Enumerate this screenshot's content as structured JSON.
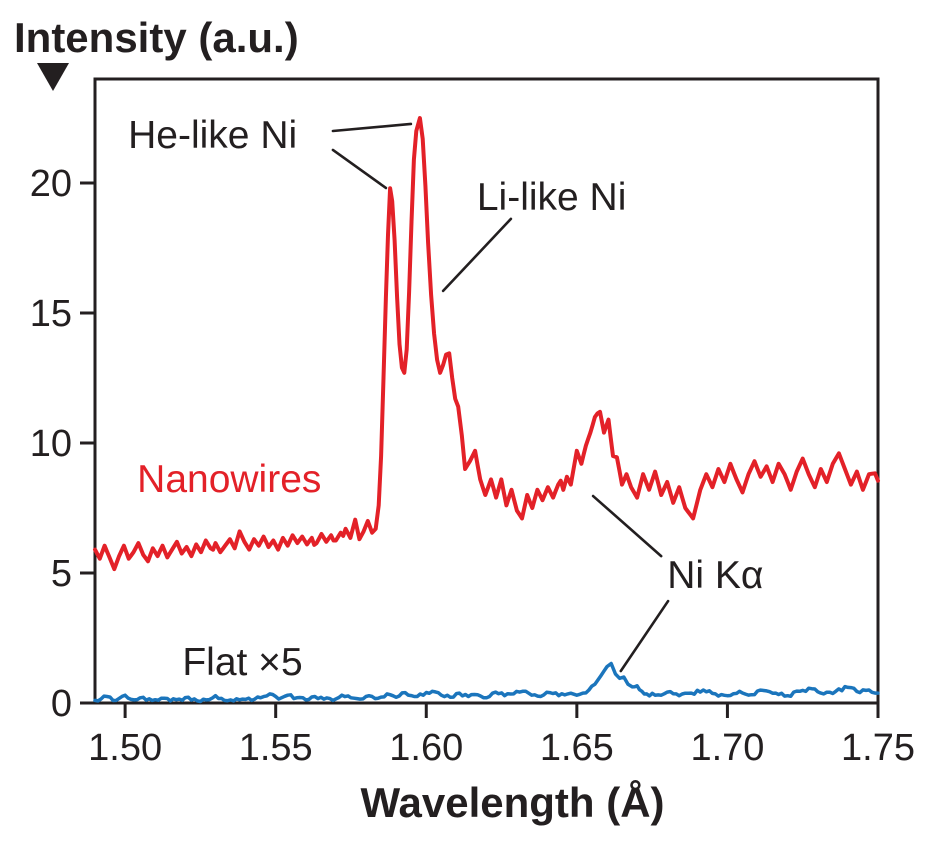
{
  "page": {
    "background": "#ffffff"
  },
  "chart_data": {
    "type": "line",
    "title": "",
    "y_axis_label": "Intensity (a.u.)",
    "x_axis_label": "Wavelength (Å)",
    "xlim": [
      1.49,
      1.75
    ],
    "ylim": [
      0,
      24
    ],
    "x_ticks": [
      1.5,
      1.55,
      1.6,
      1.65,
      1.7,
      1.75
    ],
    "x_tick_labels": [
      "1.50",
      "1.55",
      "1.60",
      "1.65",
      "1.70",
      "1.75"
    ],
    "y_ticks": [
      0,
      5,
      10,
      15,
      20
    ],
    "y_tick_labels": [
      "0",
      "5",
      "10",
      "15",
      "20"
    ],
    "grid": false,
    "legend_position": "inline-annotations",
    "axis_color": "#231f20",
    "background_color": "#ffffff",
    "y_axis_arrow": "down-triangle",
    "features": [
      {
        "label": "He-like Ni",
        "series": "Nanowires",
        "peaks": [
          {
            "x": 1.588,
            "y": 19.8
          },
          {
            "x": 1.598,
            "y": 22.5
          }
        ]
      },
      {
        "label": "Li-like Ni",
        "series": "Nanowires",
        "peaks": [
          {
            "x": 1.607,
            "y": 13.4
          }
        ]
      },
      {
        "label": "Ni Kα",
        "series": "both",
        "peaks": [
          {
            "x": 1.657,
            "y": 11.2,
            "series": "Nanowires"
          },
          {
            "x": 1.661,
            "y": 1.5,
            "series": "Flat ×5"
          }
        ]
      }
    ],
    "series": [
      {
        "name": "Nanowires",
        "color": "#e32128",
        "stroke_width": 4,
        "noise": 0.26,
        "points": [
          [
            1.49,
            5.9
          ],
          [
            1.4916,
            5.55
          ],
          [
            1.4932,
            6.05
          ],
          [
            1.4948,
            5.6
          ],
          [
            1.4964,
            5.15
          ],
          [
            1.498,
            5.65
          ],
          [
            1.4996,
            6.05
          ],
          [
            1.5012,
            5.55
          ],
          [
            1.5028,
            5.8
          ],
          [
            1.5044,
            6.15
          ],
          [
            1.506,
            5.7
          ],
          [
            1.5076,
            5.45
          ],
          [
            1.5092,
            5.95
          ],
          [
            1.5108,
            5.65
          ],
          [
            1.5124,
            6.05
          ],
          [
            1.514,
            5.6
          ],
          [
            1.5156,
            5.9
          ],
          [
            1.5172,
            6.2
          ],
          [
            1.5188,
            5.75
          ],
          [
            1.5204,
            6.0
          ],
          [
            1.522,
            5.65
          ],
          [
            1.5236,
            6.1
          ],
          [
            1.5252,
            5.8
          ],
          [
            1.5268,
            6.25
          ],
          [
            1.5284,
            5.95
          ],
          [
            1.53,
            6.15
          ],
          [
            1.5316,
            5.8
          ],
          [
            1.5332,
            6.05
          ],
          [
            1.5348,
            6.3
          ],
          [
            1.5364,
            5.95
          ],
          [
            1.538,
            6.6
          ],
          [
            1.5396,
            6.2
          ],
          [
            1.5412,
            5.9
          ],
          [
            1.5428,
            6.3
          ],
          [
            1.5444,
            6.05
          ],
          [
            1.546,
            6.4
          ],
          [
            1.5476,
            6.0
          ],
          [
            1.5492,
            6.25
          ],
          [
            1.5508,
            5.9
          ],
          [
            1.5524,
            6.35
          ],
          [
            1.554,
            6.05
          ],
          [
            1.5556,
            6.45
          ],
          [
            1.5572,
            6.15
          ],
          [
            1.5588,
            6.4
          ],
          [
            1.5604,
            6.1
          ],
          [
            1.562,
            6.35
          ],
          [
            1.5636,
            6.15
          ],
          [
            1.5652,
            6.5
          ],
          [
            1.5668,
            6.2
          ],
          [
            1.5684,
            6.45
          ],
          [
            1.57,
            6.25
          ],
          [
            1.5716,
            6.55
          ],
          [
            1.5732,
            6.7
          ],
          [
            1.5748,
            6.35
          ],
          [
            1.5764,
            7.05
          ],
          [
            1.5778,
            6.3
          ],
          [
            1.5792,
            6.6
          ],
          [
            1.5806,
            7.0
          ],
          [
            1.582,
            6.55
          ],
          [
            1.5832,
            6.7
          ],
          [
            1.5842,
            7.6
          ],
          [
            1.585,
            9.5
          ],
          [
            1.5858,
            12.5
          ],
          [
            1.5866,
            15.6
          ],
          [
            1.5873,
            18.0
          ],
          [
            1.588,
            19.8
          ],
          [
            1.5887,
            19.3
          ],
          [
            1.5895,
            17.8
          ],
          [
            1.5903,
            15.6
          ],
          [
            1.5911,
            13.8
          ],
          [
            1.5919,
            12.9
          ],
          [
            1.5927,
            12.7
          ],
          [
            1.5935,
            13.6
          ],
          [
            1.5943,
            15.8
          ],
          [
            1.5951,
            18.5
          ],
          [
            1.5959,
            20.9
          ],
          [
            1.5967,
            22.0
          ],
          [
            1.5979,
            22.5
          ],
          [
            1.5988,
            21.7
          ],
          [
            1.5997,
            19.9
          ],
          [
            1.6006,
            17.7
          ],
          [
            1.6016,
            15.7
          ],
          [
            1.6026,
            14.2
          ],
          [
            1.6036,
            13.2
          ],
          [
            1.6046,
            12.7
          ],
          [
            1.6056,
            13.0
          ],
          [
            1.6066,
            13.4
          ],
          [
            1.6076,
            13.45
          ],
          [
            1.6086,
            12.5
          ],
          [
            1.6096,
            11.7
          ],
          [
            1.6106,
            11.4
          ],
          [
            1.6118,
            10.3
          ],
          [
            1.6129,
            9.0
          ],
          [
            1.6145,
            9.3
          ],
          [
            1.6162,
            9.7
          ],
          [
            1.6179,
            8.6
          ],
          [
            1.6196,
            8.0
          ],
          [
            1.6215,
            8.6
          ],
          [
            1.6232,
            7.9
          ],
          [
            1.6249,
            8.6
          ],
          [
            1.6266,
            7.6
          ],
          [
            1.6283,
            8.2
          ],
          [
            1.6301,
            7.4
          ],
          [
            1.6318,
            7.1
          ],
          [
            1.6335,
            8.0
          ],
          [
            1.6352,
            7.5
          ],
          [
            1.6369,
            8.2
          ],
          [
            1.6386,
            7.8
          ],
          [
            1.6404,
            8.3
          ],
          [
            1.6421,
            7.9
          ],
          [
            1.6438,
            8.4
          ],
          [
            1.6455,
            8.2
          ],
          [
            1.6467,
            8.7
          ],
          [
            1.648,
            8.4
          ],
          [
            1.65,
            9.7
          ],
          [
            1.6515,
            9.2
          ],
          [
            1.653,
            9.9
          ],
          [
            1.6545,
            10.4
          ],
          [
            1.656,
            11.0
          ],
          [
            1.6577,
            11.2
          ],
          [
            1.659,
            10.4
          ],
          [
            1.6605,
            10.9
          ],
          [
            1.662,
            9.5
          ],
          [
            1.6633,
            9.45
          ],
          [
            1.665,
            8.4
          ],
          [
            1.6665,
            8.8
          ],
          [
            1.668,
            8.3
          ],
          [
            1.67,
            7.9
          ],
          [
            1.672,
            8.8
          ],
          [
            1.674,
            8.2
          ],
          [
            1.676,
            8.9
          ],
          [
            1.678,
            8.0
          ],
          [
            1.68,
            8.5
          ],
          [
            1.682,
            7.7
          ],
          [
            1.684,
            8.3
          ],
          [
            1.686,
            7.5
          ],
          [
            1.6886,
            7.1
          ],
          [
            1.691,
            8.2
          ],
          [
            1.693,
            8.8
          ],
          [
            1.695,
            8.3
          ],
          [
            1.697,
            9.0
          ],
          [
            1.699,
            8.5
          ],
          [
            1.701,
            9.2
          ],
          [
            1.703,
            8.6
          ],
          [
            1.705,
            8.1
          ],
          [
            1.707,
            8.8
          ],
          [
            1.709,
            9.3
          ],
          [
            1.711,
            8.7
          ],
          [
            1.713,
            9.1
          ],
          [
            1.715,
            8.5
          ],
          [
            1.717,
            9.2
          ],
          [
            1.719,
            8.8
          ],
          [
            1.721,
            8.2
          ],
          [
            1.723,
            8.9
          ],
          [
            1.725,
            9.4
          ],
          [
            1.727,
            8.8
          ],
          [
            1.729,
            8.3
          ],
          [
            1.731,
            9.0
          ],
          [
            1.733,
            8.5
          ],
          [
            1.735,
            9.2
          ],
          [
            1.737,
            9.6
          ],
          [
            1.739,
            9.0
          ],
          [
            1.741,
            8.4
          ],
          [
            1.743,
            8.9
          ],
          [
            1.745,
            8.2
          ],
          [
            1.747,
            8.8
          ],
          [
            1.75,
            8.55
          ]
        ]
      },
      {
        "name": "Flat ×5",
        "color": "#1b75bc",
        "stroke_width": 3.5,
        "noise": 0.07,
        "points": [
          [
            1.49,
            0.1
          ],
          [
            1.494,
            0.25
          ],
          [
            1.497,
            0.1
          ],
          [
            1.5,
            0.3
          ],
          [
            1.503,
            0.12
          ],
          [
            1.506,
            0.22
          ],
          [
            1.509,
            0.1
          ],
          [
            1.512,
            0.18
          ],
          [
            1.515,
            0.08
          ],
          [
            1.518,
            0.15
          ],
          [
            1.521,
            0.22
          ],
          [
            1.524,
            0.08
          ],
          [
            1.527,
            0.12
          ],
          [
            1.53,
            0.28
          ],
          [
            1.533,
            0.1
          ],
          [
            1.536,
            0.08
          ],
          [
            1.539,
            0.15
          ],
          [
            1.542,
            0.1
          ],
          [
            1.545,
            0.2
          ],
          [
            1.548,
            0.35
          ],
          [
            1.551,
            0.15
          ],
          [
            1.554,
            0.3
          ],
          [
            1.557,
            0.2
          ],
          [
            1.56,
            0.12
          ],
          [
            1.563,
            0.25
          ],
          [
            1.566,
            0.15
          ],
          [
            1.569,
            0.1
          ],
          [
            1.572,
            0.3
          ],
          [
            1.575,
            0.2
          ],
          [
            1.578,
            0.15
          ],
          [
            1.581,
            0.28
          ],
          [
            1.584,
            0.18
          ],
          [
            1.587,
            0.35
          ],
          [
            1.59,
            0.22
          ],
          [
            1.593,
            0.4
          ],
          [
            1.596,
            0.25
          ],
          [
            1.599,
            0.3
          ],
          [
            1.602,
            0.45
          ],
          [
            1.605,
            0.3
          ],
          [
            1.608,
            0.22
          ],
          [
            1.611,
            0.38
          ],
          [
            1.614,
            0.25
          ],
          [
            1.617,
            0.32
          ],
          [
            1.62,
            0.2
          ],
          [
            1.623,
            0.42
          ],
          [
            1.626,
            0.28
          ],
          [
            1.629,
            0.35
          ],
          [
            1.632,
            0.45
          ],
          [
            1.635,
            0.3
          ],
          [
            1.638,
            0.25
          ],
          [
            1.641,
            0.4
          ],
          [
            1.644,
            0.28
          ],
          [
            1.647,
            0.35
          ],
          [
            1.65,
            0.3
          ],
          [
            1.652,
            0.38
          ],
          [
            1.654,
            0.5
          ],
          [
            1.656,
            0.72
          ],
          [
            1.658,
            1.05
          ],
          [
            1.66,
            1.4
          ],
          [
            1.6614,
            1.52
          ],
          [
            1.6628,
            1.12
          ],
          [
            1.6642,
            0.95
          ],
          [
            1.6656,
            1.0
          ],
          [
            1.667,
            0.72
          ],
          [
            1.6684,
            0.62
          ],
          [
            1.67,
            0.66
          ],
          [
            1.6716,
            0.45
          ],
          [
            1.6732,
            0.35
          ],
          [
            1.676,
            0.3
          ],
          [
            1.68,
            0.42
          ],
          [
            1.684,
            0.28
          ],
          [
            1.688,
            0.38
          ],
          [
            1.692,
            0.5
          ],
          [
            1.696,
            0.35
          ],
          [
            1.7,
            0.28
          ],
          [
            1.704,
            0.45
          ],
          [
            1.708,
            0.32
          ],
          [
            1.712,
            0.48
          ],
          [
            1.716,
            0.38
          ],
          [
            1.72,
            0.28
          ],
          [
            1.724,
            0.45
          ],
          [
            1.728,
            0.55
          ],
          [
            1.732,
            0.35
          ],
          [
            1.736,
            0.45
          ],
          [
            1.74,
            0.6
          ],
          [
            1.744,
            0.4
          ],
          [
            1.747,
            0.5
          ],
          [
            1.75,
            0.38
          ]
        ]
      }
    ],
    "annotations": {
      "texts": [
        {
          "id": "he-like-ni",
          "text": "He-like Ni",
          "x": 1.501,
          "y": 21.35,
          "color": "#231f20",
          "size": 39,
          "bold": false,
          "anchor": "start"
        },
        {
          "id": "li-like-ni",
          "text": "Li-like Ni",
          "x": 1.6168,
          "y": 18.96,
          "color": "#231f20",
          "size": 39,
          "bold": false,
          "anchor": "start"
        },
        {
          "id": "nanowires",
          "text": "Nanowires",
          "x": 1.504,
          "y": 8.12,
          "color": "#e32128",
          "size": 39,
          "bold": false,
          "anchor": "start"
        },
        {
          "id": "flat-x5",
          "text": "Flat ×5",
          "x": 1.519,
          "y": 1.08,
          "color": "#231f20",
          "size": 39,
          "bold": false,
          "anchor": "start"
        },
        {
          "id": "ni-ka",
          "text": "Ni Kα",
          "x": 1.68,
          "y": 4.42,
          "color": "#231f20",
          "size": 39,
          "bold": false,
          "anchor": "start"
        }
      ],
      "leader_lines": [
        {
          "label": "he-like-ni",
          "x1": 1.569,
          "y1": 22.0,
          "x2": 1.5949,
          "y2": 22.27
        },
        {
          "label": "he-like-ni",
          "x1": 1.569,
          "y1": 21.27,
          "x2": 1.5866,
          "y2": 19.81
        },
        {
          "label": "li-like-ni",
          "x1": 1.6281,
          "y1": 18.62,
          "x2": 1.6056,
          "y2": 15.85
        },
        {
          "label": "ni-ka",
          "x1": 1.678,
          "y1": 5.65,
          "x2": 1.6554,
          "y2": 7.96
        },
        {
          "label": "ni-ka",
          "x1": 1.6803,
          "y1": 3.92,
          "x2": 1.6646,
          "y2": 1.23
        }
      ]
    }
  }
}
